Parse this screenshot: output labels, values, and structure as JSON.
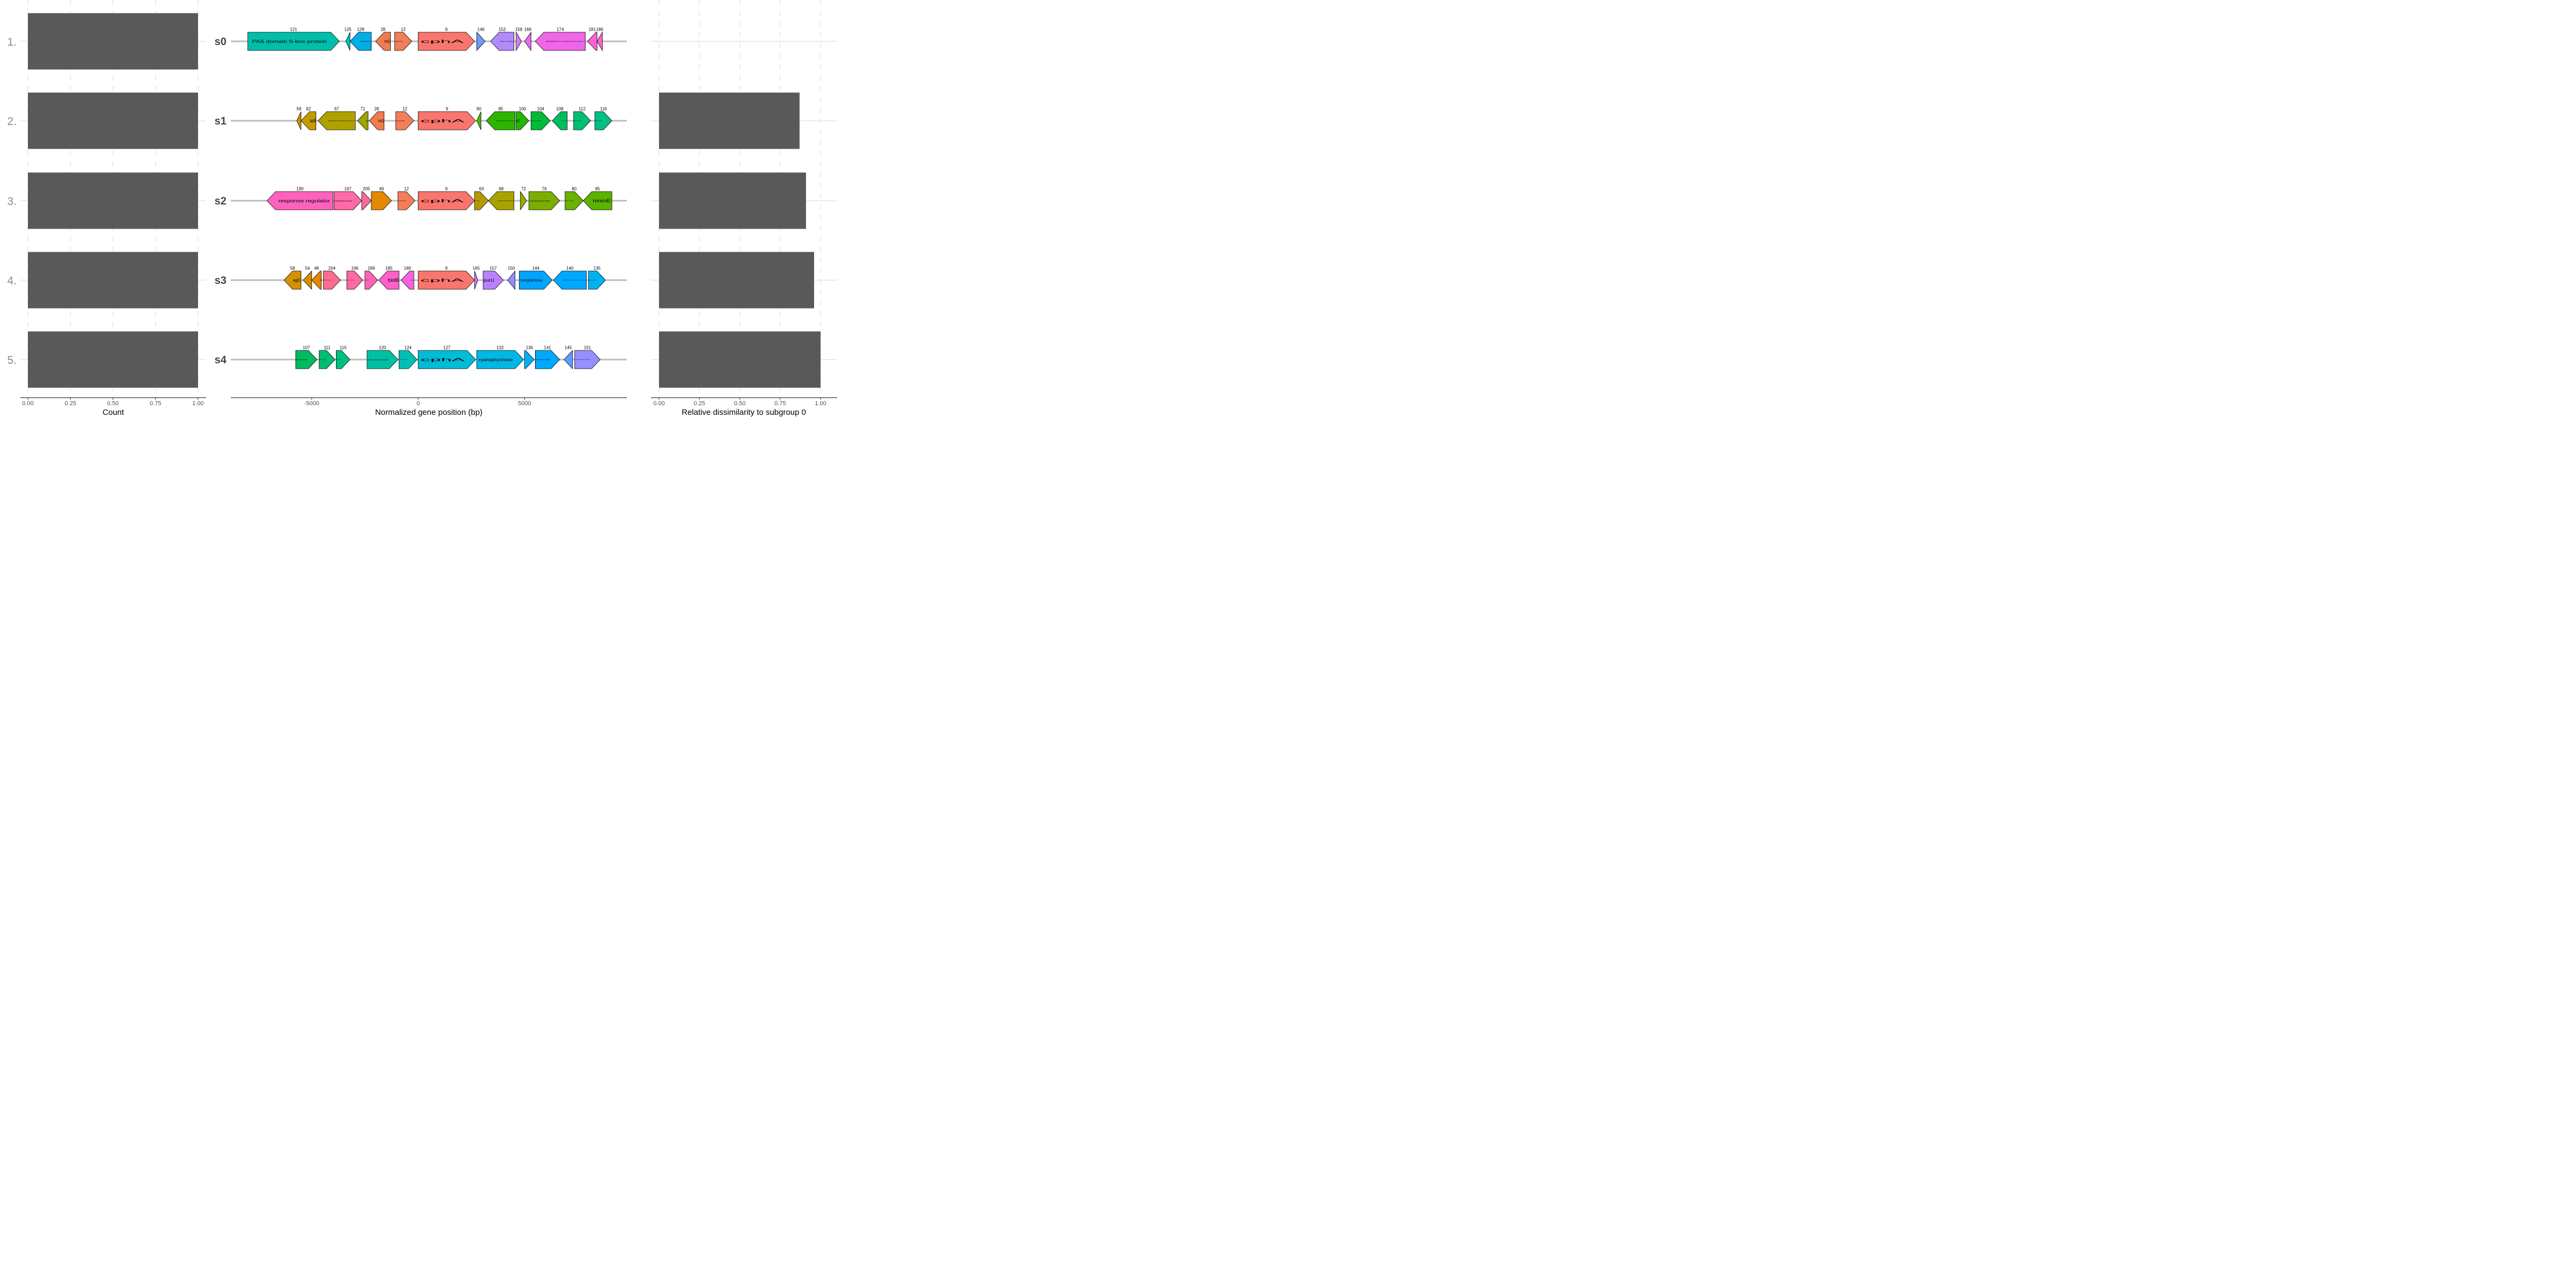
{
  "chart_data": [
    {
      "type": "bar",
      "panel": "left",
      "orientation": "horizontal",
      "categories": [
        "1.",
        "2.",
        "3.",
        "4.",
        "5."
      ],
      "values": [
        1.0,
        1.0,
        1.0,
        1.0,
        1.0
      ],
      "xlabel": "Count",
      "xlim": [
        0,
        1
      ],
      "xticks": [
        "0.00",
        "0.25",
        "0.50",
        "0.75",
        "1.00"
      ],
      "bar_color": "#595959",
      "grid": true
    },
    {
      "type": "gene-arrows",
      "panel": "middle",
      "xlabel": "Normalized gene position (bp)",
      "xlim": [
        -8800,
        9800
      ],
      "xticks": [
        {
          "value": -5000,
          "label": "-5000"
        },
        {
          "value": 0,
          "label": "0"
        },
        {
          "value": 5000,
          "label": "5000"
        }
      ],
      "segments": [
        {
          "name": "s0",
          "genes": [
            {
              "id": "121",
              "start": -8000,
              "end": -3700,
              "strand": 1,
              "label": "PAS domain S-box protein",
              "color": "#00BFAA",
              "size": 8
            },
            {
              "id": "125",
              "start": -3400,
              "end": -3200,
              "strand": -1,
              "label": "",
              "color": "#00C0B8",
              "size": 3
            },
            {
              "id": "128",
              "start": -3200,
              "end": -2200,
              "strand": -1,
              "label": "hypothetical protein",
              "color": "#00AEE6",
              "size": 3
            },
            {
              "id": "28",
              "start": -2000,
              "end": -1300,
              "strand": -1,
              "label": "trmD",
              "color": "#F07D50",
              "size": 9
            },
            {
              "id": "12",
              "start": -1100,
              "end": -300,
              "strand": 1,
              "label": "cyanophycinase",
              "color": "#F27E5A",
              "size": 3
            },
            {
              "id": "9",
              "start": 0,
              "end": 2650,
              "strand": 1,
              "label": "cphA",
              "color": "#F8766D",
              "size": 8
            },
            {
              "id": "146",
              "start": 2750,
              "end": 3150,
              "strand": 1,
              "label": "",
              "color": "#709AF7",
              "size": 3
            },
            {
              "id": "152",
              "start": 3400,
              "end": 4500,
              "strand": -1,
              "label": "D-alanine--D-alanine ligase",
              "color": "#B28BFA",
              "size": 3
            },
            {
              "id": "158",
              "start": 4600,
              "end": 4850,
              "strand": 1,
              "label": "",
              "color": "#D27AF6",
              "size": 3
            },
            {
              "id": "166",
              "start": 5000,
              "end": 5300,
              "strand": -1,
              "label": "",
              "color": "#E56AF0",
              "size": 3
            },
            {
              "id": "174",
              "start": 5500,
              "end": 7850,
              "strand": -1,
              "label": "DEAD/DEAH box helicase family protein",
              "color": "#F066E8",
              "size": 3
            },
            {
              "id": "181",
              "start": 7950,
              "end": 8400,
              "strand": -1,
              "label": "",
              "color": "#F863D8",
              "size": 3
            },
            {
              "id": "186",
              "start": 8400,
              "end": 8650,
              "strand": -1,
              "label": "",
              "color": "#FC62C8",
              "size": 3
            }
          ]
        },
        {
          "name": "s1",
          "genes": [
            {
              "id": "59",
              "start": -5700,
              "end": -5500,
              "strand": -1,
              "label": "",
              "color": "#C59200",
              "size": 3
            },
            {
              "id": "62",
              "start": -5500,
              "end": -4800,
              "strand": -1,
              "label": "larB",
              "color": "#C49A00",
              "size": 9
            },
            {
              "id": "67",
              "start": -4700,
              "end": -2950,
              "strand": -1,
              "label": "ABC transporter substrate-binding protein",
              "color": "#AFA100",
              "size": 3
            },
            {
              "id": "71",
              "start": -2850,
              "end": -2350,
              "strand": -1,
              "label": "ispF",
              "color": "#9EA400",
              "size": 4
            },
            {
              "id": "28",
              "start": -2300,
              "end": -1600,
              "strand": -1,
              "label": "trmD",
              "color": "#F07D50",
              "size": 8
            },
            {
              "id": "12",
              "start": -1050,
              "end": -200,
              "strand": 1,
              "label": "cyanophycinase",
              "color": "#F27E5A",
              "size": 3
            },
            {
              "id": "9",
              "start": 0,
              "end": 2700,
              "strand": 1,
              "label": "cphA",
              "color": "#F8766D",
              "size": 8
            },
            {
              "id": "90",
              "start": 2750,
              "end": 2950,
              "strand": -1,
              "label": "",
              "color": "#4DB800",
              "size": 3
            },
            {
              "id": "95",
              "start": 3200,
              "end": 4550,
              "strand": -1,
              "label": "phosphoribosyl protein kinase",
              "color": "#2DB600",
              "size": 3
            },
            {
              "id": "100",
              "start": 4600,
              "end": 5200,
              "strand": 1,
              "label": "cbiT",
              "color": "#21B700",
              "size": 8
            },
            {
              "id": "104",
              "start": 5300,
              "end": 6200,
              "strand": 1,
              "label": "precorrin-6A synthase",
              "color": "#00BA38",
              "size": 3
            },
            {
              "id": "108",
              "start": 6300,
              "end": 7000,
              "strand": -1,
              "label": "conserved protein",
              "color": "#00BD5F",
              "size": 2
            },
            {
              "id": "112",
              "start": 7300,
              "end": 8100,
              "strand": 1,
              "label": "DUF hypothetical protein",
              "color": "#00BE72",
              "size": 2
            },
            {
              "id": "116",
              "start": 8300,
              "end": 9100,
              "strand": 1,
              "label": "methyltransferase domain protein",
              "color": "#00BF87",
              "size": 2
            }
          ]
        },
        {
          "name": "s2",
          "genes": [
            {
              "id": "190",
              "start": -7100,
              "end": -4000,
              "strand": -1,
              "label": "response regulator",
              "color": "#FF62BC",
              "size": 8
            },
            {
              "id": "197",
              "start": -3950,
              "end": -2650,
              "strand": 1,
              "label": "NAD(P)/FAD-dependent oxidoreductase",
              "color": "#FF6AAA",
              "size": 4
            },
            {
              "id": "205",
              "start": -2650,
              "end": -2200,
              "strand": 1,
              "label": "",
              "color": "#FF689C",
              "size": 2
            },
            {
              "id": "49",
              "start": -2200,
              "end": -1250,
              "strand": 1,
              "label": "",
              "color": "#E38900",
              "size": 3
            },
            {
              "id": "12",
              "start": -950,
              "end": -150,
              "strand": 1,
              "label": "cyanophycinase",
              "color": "#F27E5A",
              "size": 3
            },
            {
              "id": "9",
              "start": 0,
              "end": 2650,
              "strand": 1,
              "label": "cphA",
              "color": "#F8766D",
              "size": 8
            },
            {
              "id": "63",
              "start": 2650,
              "end": 3300,
              "strand": 1,
              "label": "precorrin-8X methylmutase",
              "color": "#B49A00",
              "size": 2
            },
            {
              "id": "68",
              "start": 3300,
              "end": 4500,
              "strand": -1,
              "label": "glycosyltransferase family protein",
              "color": "#AAA200",
              "size": 3
            },
            {
              "id": "72",
              "start": 4800,
              "end": 5100,
              "strand": 1,
              "label": "",
              "color": "#99A800",
              "size": 3
            },
            {
              "id": "76",
              "start": 5200,
              "end": 6650,
              "strand": 1,
              "label": "hypothetical protein",
              "color": "#7CAE00",
              "size": 4
            },
            {
              "id": "80",
              "start": 6900,
              "end": 7750,
              "strand": 1,
              "label": "DUF protein",
              "color": "#6BB100",
              "size": 2
            },
            {
              "id": "85",
              "start": 7750,
              "end": 9100,
              "strand": -1,
              "label": "mnmE",
              "color": "#5BB300",
              "size": 9
            }
          ]
        },
        {
          "name": "s3",
          "genes": [
            {
              "id": "58",
              "start": -6300,
              "end": -5500,
              "strand": -1,
              "label": "egtC",
              "color": "#D39200",
              "size": 8
            },
            {
              "id": "54",
              "start": -5400,
              "end": -5000,
              "strand": -1,
              "label": "",
              "color": "#D58F00",
              "size": 2
            },
            {
              "id": "48",
              "start": -5000,
              "end": -4550,
              "strand": -1,
              "label": "hypothetical protein",
              "color": "#E38900",
              "size": 2
            },
            {
              "id": "204",
              "start": -4450,
              "end": -3650,
              "strand": 1,
              "label": "SAM-dependent methyltransferase",
              "color": "#FF6C91",
              "size": 2
            },
            {
              "id": "196",
              "start": -3350,
              "end": -2600,
              "strand": 1,
              "label": "hypothetical protein",
              "color": "#FF6AA2",
              "size": 2
            },
            {
              "id": "189",
              "start": -2500,
              "end": -1900,
              "strand": 1,
              "label": "hypothetical protein",
              "color": "#FF63B6",
              "size": 2
            },
            {
              "id": "185",
              "start": -1850,
              "end": -900,
              "strand": -1,
              "label": "bioB",
              "color": "#FF61C9",
              "size": 9
            },
            {
              "id": "180",
              "start": -800,
              "end": -200,
              "strand": -1,
              "label": "cyanophycinase",
              "color": "#F962DD",
              "size": 2
            },
            {
              "id": "9",
              "start": 0,
              "end": 2650,
              "strand": 1,
              "label": "cphA",
              "color": "#F8766D",
              "size": 8
            },
            {
              "id": "165",
              "start": 2650,
              "end": 2800,
              "strand": 1,
              "label": "",
              "color": "#D376FF",
              "size": 2
            },
            {
              "id": "157",
              "start": 3050,
              "end": 4000,
              "strand": 1,
              "label": "purU",
              "color": "#BB80FF",
              "size": 8
            },
            {
              "id": "150",
              "start": 4200,
              "end": 4550,
              "strand": -1,
              "label": "",
              "color": "#8F8EFF",
              "size": 2
            },
            {
              "id": "144",
              "start": 4750,
              "end": 6300,
              "strand": 1,
              "label": "transglutaminase",
              "color": "#00A5FF",
              "size": 7
            },
            {
              "id": "140",
              "start": 6350,
              "end": 7900,
              "strand": -1,
              "label": "ACR family protein",
              "color": "#00A9FF",
              "size": 2
            },
            {
              "id": "135",
              "start": 8000,
              "end": 8800,
              "strand": 1,
              "label": "hypothetical protein",
              "color": "#00B2F0",
              "size": 2
            }
          ]
        },
        {
          "name": "s4",
          "genes": [
            {
              "id": "107",
              "start": -5750,
              "end": -4750,
              "strand": 1,
              "label": "hypothetical protein",
              "color": "#00BA60",
              "size": 3
            },
            {
              "id": "111",
              "start": -4650,
              "end": -3900,
              "strand": 1,
              "label": "aldo/keto reductase",
              "color": "#00BD70",
              "size": 2
            },
            {
              "id": "115",
              "start": -3850,
              "end": -3200,
              "strand": 1,
              "label": "hypothetical protein",
              "color": "#00BF82",
              "size": 2
            },
            {
              "id": "120",
              "start": -2400,
              "end": -950,
              "strand": 1,
              "label": "amino acid permease",
              "color": "#00BFA5",
              "size": 4
            },
            {
              "id": "124",
              "start": -900,
              "end": -50,
              "strand": 1,
              "label": "universal stress protein",
              "color": "#00BFB5",
              "size": 2
            },
            {
              "id": "127",
              "start": 0,
              "end": 2700,
              "strand": 1,
              "label": "cphA",
              "color": "#00BCD6",
              "size": 8
            },
            {
              "id": "132",
              "start": 2750,
              "end": 4950,
              "strand": 1,
              "label": "cyanophycinase",
              "color": "#00B8E5",
              "size": 8
            },
            {
              "id": "136",
              "start": 5000,
              "end": 5450,
              "strand": 1,
              "label": "",
              "color": "#00B0F6",
              "size": 2
            },
            {
              "id": "141",
              "start": 5500,
              "end": 6650,
              "strand": 1,
              "label": "M14 family metallopeptidase",
              "color": "#00A9FF",
              "size": 3
            },
            {
              "id": "145",
              "start": 6850,
              "end": 7250,
              "strand": -1,
              "label": "",
              "color": "#619CFF",
              "size": 2
            },
            {
              "id": "151",
              "start": 7350,
              "end": 8550,
              "strand": 1,
              "label": "isoaspartyl dipeptidase family protein",
              "color": "#9590FF",
              "size": 2
            }
          ]
        }
      ]
    },
    {
      "type": "bar",
      "panel": "right",
      "orientation": "horizontal",
      "categories": [
        "1.",
        "2.",
        "3.",
        "4.",
        "5."
      ],
      "values": [
        0.0,
        0.87,
        0.91,
        0.96,
        1.0
      ],
      "xlabel": "Relative dissimilarity to subgroup 0",
      "xlim": [
        -0.05,
        1.1
      ],
      "xticks": [
        "0.00",
        "0.25",
        "0.50",
        "0.75",
        "1.00"
      ],
      "bar_color": "#595959",
      "grid": true
    }
  ]
}
